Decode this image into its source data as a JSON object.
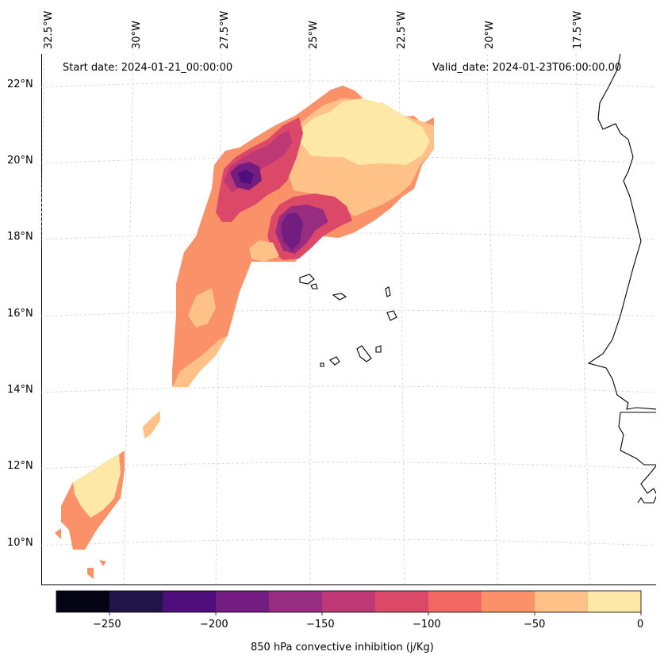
{
  "map": {
    "start_date": "Start date: 2024-01-21_00:00:00",
    "valid_date": "Valid_date: 2024-01-23T06:00:00.00",
    "lon_labels": [
      "32.5°W",
      "30°W",
      "27.5°W",
      "25°W",
      "22.5°W",
      "20°W",
      "17.5°W"
    ],
    "lat_labels": [
      "22°N",
      "20°N",
      "18°N",
      "16°N",
      "14°N",
      "12°N",
      "10°N"
    ]
  },
  "colorbar": {
    "label": "850 hPa convective inhibition (j/Kg)",
    "ticks": [
      "−250",
      "−200",
      "−150",
      "−100",
      "−50",
      "0"
    ],
    "range": [
      -275,
      0
    ],
    "colors": [
      "#050415",
      "#201448",
      "#4e0f7c",
      "#741d81",
      "#982c80",
      "#bd3875",
      "#dc4868",
      "#f06861",
      "#fb9169",
      "#fec188",
      "#fde8a8"
    ]
  },
  "colors": {
    "coast": "#000000",
    "grid": "#d0d0d0"
  }
}
